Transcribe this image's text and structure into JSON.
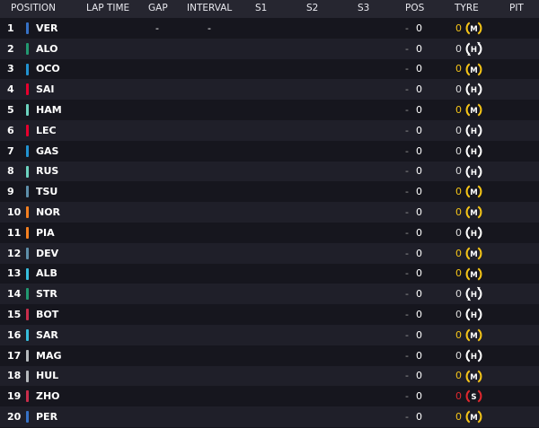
{
  "header": {
    "position": "POSITION",
    "lap_time": "LAP TIME",
    "gap": "GAP",
    "interval": "INTERVAL",
    "s1": "S1",
    "s2": "S2",
    "s3": "S3",
    "pos": "POS",
    "tyre": "TYRE",
    "pit": "PIT"
  },
  "tyre_colors": {
    "M": "#f5c518",
    "H": "#ffffff",
    "S": "#e0282e"
  },
  "rows": [
    {
      "pos": "1",
      "code": "VER",
      "color": "#3671c6",
      "gap": "-",
      "interval": "-",
      "dash": "-",
      "pos_change": "0",
      "tyre_age": "0",
      "tyre": "M"
    },
    {
      "pos": "2",
      "code": "ALO",
      "color": "#229971",
      "dash": "-",
      "pos_change": "0",
      "tyre_age": "0",
      "tyre": "H",
      "tyre_new": true
    },
    {
      "pos": "3",
      "code": "OCO",
      "color": "#2293d1",
      "dash": "-",
      "pos_change": "0",
      "tyre_age": "0",
      "tyre": "M"
    },
    {
      "pos": "4",
      "code": "SAI",
      "color": "#e8002d",
      "dash": "-",
      "pos_change": "0",
      "tyre_age": "0",
      "tyre": "H"
    },
    {
      "pos": "5",
      "code": "HAM",
      "color": "#6cd3bf",
      "dash": "-",
      "pos_change": "0",
      "tyre_age": "0",
      "tyre": "M"
    },
    {
      "pos": "6",
      "code": "LEC",
      "color": "#e8002d",
      "dash": "-",
      "pos_change": "0",
      "tyre_age": "0",
      "tyre": "H"
    },
    {
      "pos": "7",
      "code": "GAS",
      "color": "#2293d1",
      "dash": "-",
      "pos_change": "0",
      "tyre_age": "0",
      "tyre": "H"
    },
    {
      "pos": "8",
      "code": "RUS",
      "color": "#6cd3bf",
      "dash": "-",
      "pos_change": "0",
      "tyre_age": "0",
      "tyre": "H"
    },
    {
      "pos": "9",
      "code": "TSU",
      "color": "#5e8faa",
      "dash": "-",
      "pos_change": "0",
      "tyre_age": "0",
      "tyre": "M"
    },
    {
      "pos": "10",
      "code": "NOR",
      "color": "#f58020",
      "dash": "-",
      "pos_change": "0",
      "tyre_age": "0",
      "tyre": "M"
    },
    {
      "pos": "11",
      "code": "PIA",
      "color": "#f58020",
      "dash": "-",
      "pos_change": "0",
      "tyre_age": "0",
      "tyre": "H"
    },
    {
      "pos": "12",
      "code": "DEV",
      "color": "#5e8faa",
      "dash": "-",
      "pos_change": "0",
      "tyre_age": "0",
      "tyre": "M"
    },
    {
      "pos": "13",
      "code": "ALB",
      "color": "#37bedd",
      "dash": "-",
      "pos_change": "0",
      "tyre_age": "0",
      "tyre": "M"
    },
    {
      "pos": "14",
      "code": "STR",
      "color": "#229971",
      "dash": "-",
      "pos_change": "0",
      "tyre_age": "0",
      "tyre": "H",
      "tyre_new": true
    },
    {
      "pos": "15",
      "code": "BOT",
      "color": "#c92d4b",
      "dash": "-",
      "pos_change": "0",
      "tyre_age": "0",
      "tyre": "H"
    },
    {
      "pos": "16",
      "code": "SAR",
      "color": "#37bedd",
      "dash": "-",
      "pos_change": "0",
      "tyre_age": "0",
      "tyre": "M"
    },
    {
      "pos": "17",
      "code": "MAG",
      "color": "#b6babd",
      "dash": "-",
      "pos_change": "0",
      "tyre_age": "0",
      "tyre": "H"
    },
    {
      "pos": "18",
      "code": "HUL",
      "color": "#b6babd",
      "dash": "-",
      "pos_change": "0",
      "tyre_age": "0",
      "tyre": "M"
    },
    {
      "pos": "19",
      "code": "ZHO",
      "color": "#c92d4b",
      "dash": "-",
      "pos_change": "0",
      "tyre_age": "0",
      "tyre": "S"
    },
    {
      "pos": "20",
      "code": "PER",
      "color": "#3671c6",
      "dash": "-",
      "pos_change": "0",
      "tyre_age": "0",
      "tyre": "M"
    }
  ]
}
